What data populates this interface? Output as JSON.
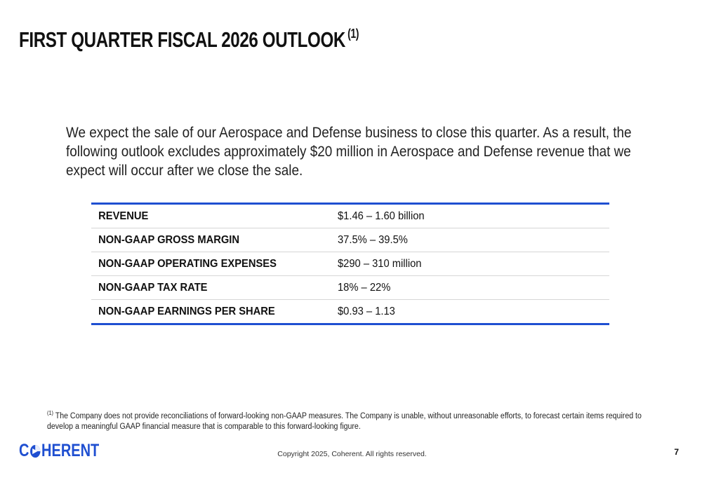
{
  "title": {
    "text": "FIRST QUARTER FISCAL 2026 OUTLOOK",
    "note": "(1)"
  },
  "intro": "We expect the sale of our Aerospace and Defense business to close this quarter. As a result, the following outlook excludes approximately $20 million in Aerospace and Defense revenue that we expect will occur after we close the sale.",
  "outlook": {
    "rows": [
      {
        "label": "REVENUE",
        "value": "$1.46 – 1.60 billion"
      },
      {
        "label": "NON-GAAP GROSS MARGIN",
        "value": "37.5% – 39.5%"
      },
      {
        "label": "NON-GAAP OPERATING EXPENSES",
        "value": "$290 – 310 million"
      },
      {
        "label": "NON-GAAP TAX RATE",
        "value": "18% – 22%"
      },
      {
        "label": "NON-GAAP EARNINGS PER SHARE",
        "value": "$0.93 – 1.13"
      }
    ]
  },
  "footnote": {
    "marker": "(1)",
    "text": "The Company does not provide reconciliations of forward-looking non-GAAP measures. The Company is unable, without unreasonable efforts, to forecast certain items required to develop a meaningful GAAP financial measure that is comparable to this forward-looking figure."
  },
  "logo": {
    "pre": "C",
    "post": "HERENT",
    "icon": "coherent-logo-icon"
  },
  "copyright": "Copyright 2025, Coherent. All rights reserved.",
  "page_number": "7",
  "colors": {
    "accent": "#1f4fd1",
    "text": "#111111"
  }
}
